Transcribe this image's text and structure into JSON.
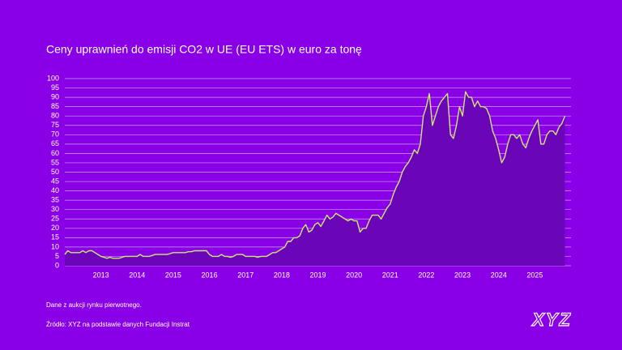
{
  "chart_data": {
    "type": "area",
    "title": "Ceny uprawnień do emisji CO2 w UE (EU ETS) w euro za tonę",
    "note": "Dane z aukcji rynku pierwotnego.",
    "source": "Źródło: XYZ na podstawie danych Fundacji Instrat",
    "logo": "XYZ",
    "x": [
      2012,
      2012.083,
      2012.167,
      2012.25,
      2012.333,
      2012.417,
      2012.5,
      2012.583,
      2012.667,
      2012.75,
      2012.833,
      2012.917,
      2013,
      2013.083,
      2013.167,
      2013.25,
      2013.333,
      2013.417,
      2013.5,
      2013.583,
      2013.667,
      2013.75,
      2013.833,
      2013.917,
      2014,
      2014.083,
      2014.167,
      2014.25,
      2014.333,
      2014.417,
      2014.5,
      2014.583,
      2014.667,
      2014.75,
      2014.833,
      2014.917,
      2015,
      2015.083,
      2015.167,
      2015.25,
      2015.333,
      2015.417,
      2015.5,
      2015.583,
      2015.667,
      2015.75,
      2015.833,
      2015.917,
      2016,
      2016.083,
      2016.167,
      2016.25,
      2016.333,
      2016.417,
      2016.5,
      2016.583,
      2016.667,
      2016.75,
      2016.833,
      2016.917,
      2017,
      2017.083,
      2017.167,
      2017.25,
      2017.333,
      2017.417,
      2017.5,
      2017.583,
      2017.667,
      2017.75,
      2017.833,
      2017.917,
      2018,
      2018.083,
      2018.167,
      2018.25,
      2018.333,
      2018.417,
      2018.5,
      2018.583,
      2018.667,
      2018.75,
      2018.833,
      2018.917,
      2019,
      2019.083,
      2019.167,
      2019.25,
      2019.333,
      2019.417,
      2019.5,
      2019.583,
      2019.667,
      2019.75,
      2019.833,
      2019.917,
      2020,
      2020.083,
      2020.167,
      2020.25,
      2020.333,
      2020.417,
      2020.5,
      2020.583,
      2020.667,
      2020.75,
      2020.833,
      2020.917,
      2021,
      2021.083,
      2021.167,
      2021.25,
      2021.333,
      2021.417,
      2021.5,
      2021.583,
      2021.667,
      2021.75,
      2021.833,
      2021.917,
      2022,
      2022.083,
      2022.167,
      2022.25,
      2022.333,
      2022.417,
      2022.5,
      2022.583,
      2022.667,
      2022.75,
      2022.833,
      2022.917,
      2023,
      2023.083,
      2023.167,
      2023.25,
      2023.333,
      2023.417,
      2023.5,
      2023.583,
      2023.667,
      2023.75,
      2023.833,
      2023.917,
      2024,
      2024.083,
      2024.167,
      2024.25,
      2024.333,
      2024.417,
      2024.5,
      2024.583,
      2024.667,
      2024.75,
      2024.833,
      2024.917,
      2025,
      2025.083,
      2025.167,
      2025.25,
      2025.333,
      2025.417,
      2025.5,
      2025.583,
      2025.667,
      2025.75,
      2025.833
    ],
    "series": [
      {
        "color": "#c8ea6a",
        "values": [
          6,
          8,
          7,
          7,
          7,
          7,
          8,
          7,
          8,
          8,
          7,
          6,
          5,
          4.5,
          4,
          4.5,
          4,
          4,
          4,
          4.5,
          5,
          5,
          5,
          5,
          5,
          6,
          5,
          5,
          5,
          5.5,
          6,
          6,
          6,
          6,
          6,
          6.5,
          7,
          7,
          7,
          7,
          7,
          7.5,
          7.5,
          8,
          8,
          8,
          8,
          8,
          6,
          5,
          5,
          5,
          6,
          5,
          5,
          4.5,
          5,
          6,
          6,
          6,
          5,
          5,
          5,
          5,
          4.5,
          5,
          5,
          5,
          6,
          7,
          7,
          8,
          9,
          10,
          13,
          13,
          15,
          15,
          16,
          20,
          22,
          18,
          19,
          22,
          23,
          21,
          24,
          27,
          25,
          26,
          28,
          27,
          26,
          25,
          24,
          25,
          24,
          24,
          18,
          20,
          20,
          24,
          27,
          27,
          27,
          25,
          28,
          31,
          33,
          38,
          42,
          45,
          50,
          53,
          55,
          58,
          62,
          60,
          65,
          80,
          85,
          92,
          75,
          80,
          85,
          88,
          90,
          92,
          70,
          68,
          75,
          85,
          80,
          93,
          90,
          90,
          85,
          88,
          85,
          85,
          84,
          80,
          72,
          68,
          62,
          55,
          58,
          65,
          70,
          70,
          68,
          70,
          65,
          63,
          68,
          72,
          75,
          78,
          65,
          65,
          70,
          72,
          72,
          70,
          74,
          76,
          80
        ]
      }
    ],
    "xlim": [
      2012,
      2026
    ],
    "xticks": [
      2013,
      2014,
      2015,
      2016,
      2017,
      2018,
      2019,
      2020,
      2021,
      2022,
      2023,
      2024,
      2025
    ],
    "ylim": [
      0,
      100
    ],
    "yticks": [
      0,
      5,
      10,
      15,
      20,
      25,
      30,
      35,
      40,
      45,
      50,
      55,
      60,
      65,
      70,
      75,
      80,
      85,
      90,
      95,
      100
    ],
    "grid": true,
    "area_color": "#6a06b8"
  }
}
